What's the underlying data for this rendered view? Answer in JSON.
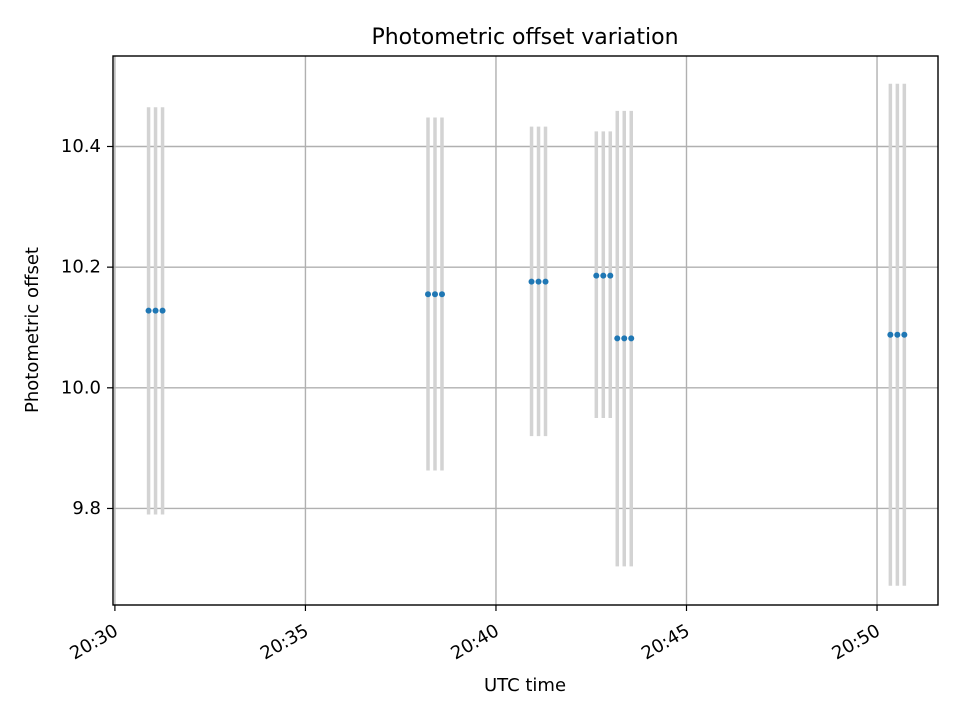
{
  "chart_data": {
    "type": "scatter",
    "title": "Photometric offset variation",
    "xlabel": "UTC time",
    "ylabel": "Photometric offset",
    "xlim": [
      "20:29.95",
      "20:51.6"
    ],
    "ylim": [
      9.64,
      10.55
    ],
    "x_ticks": [
      "20:30",
      "20:35",
      "20:40",
      "20:45",
      "20:50"
    ],
    "y_ticks": [
      "9.8",
      "10.0",
      "10.2",
      "10.4"
    ],
    "grid": true,
    "colors": {
      "points": "#1f77b4",
      "errorbars": "#d3d3d3"
    },
    "x_unit": "UTC time (HH:MM)",
    "series": [
      {
        "points": [
          {
            "x": "20:30:53",
            "y": 10.128,
            "ylow": 9.79,
            "yhigh": 10.465
          },
          {
            "x": "20:31:04",
            "y": 10.128,
            "ylow": 9.79,
            "yhigh": 10.465
          },
          {
            "x": "20:31:15",
            "y": 10.128,
            "ylow": 9.79,
            "yhigh": 10.465
          },
          {
            "x": "20:38:13",
            "y": 10.155,
            "ylow": 9.863,
            "yhigh": 10.448
          },
          {
            "x": "20:38:24",
            "y": 10.155,
            "ylow": 9.863,
            "yhigh": 10.448
          },
          {
            "x": "20:38:35",
            "y": 10.155,
            "ylow": 9.863,
            "yhigh": 10.448
          },
          {
            "x": "20:40:56",
            "y": 10.176,
            "ylow": 9.92,
            "yhigh": 10.433
          },
          {
            "x": "20:41:07",
            "y": 10.176,
            "ylow": 9.92,
            "yhigh": 10.433
          },
          {
            "x": "20:41:18",
            "y": 10.176,
            "ylow": 9.92,
            "yhigh": 10.433
          },
          {
            "x": "20:42:38",
            "y": 10.186,
            "ylow": 9.95,
            "yhigh": 10.425
          },
          {
            "x": "20:42:49",
            "y": 10.186,
            "ylow": 9.95,
            "yhigh": 10.425
          },
          {
            "x": "20:43:00",
            "y": 10.186,
            "ylow": 9.95,
            "yhigh": 10.425
          },
          {
            "x": "20:43:11",
            "y": 10.082,
            "ylow": 9.704,
            "yhigh": 10.459
          },
          {
            "x": "20:43:22",
            "y": 10.082,
            "ylow": 9.704,
            "yhigh": 10.459
          },
          {
            "x": "20:43:33",
            "y": 10.082,
            "ylow": 9.704,
            "yhigh": 10.459
          },
          {
            "x": "20:50:21",
            "y": 10.088,
            "ylow": 9.672,
            "yhigh": 10.504
          },
          {
            "x": "20:50:32",
            "y": 10.088,
            "ylow": 9.672,
            "yhigh": 10.504
          },
          {
            "x": "20:50:43",
            "y": 10.088,
            "ylow": 9.672,
            "yhigh": 10.504
          }
        ]
      }
    ]
  }
}
